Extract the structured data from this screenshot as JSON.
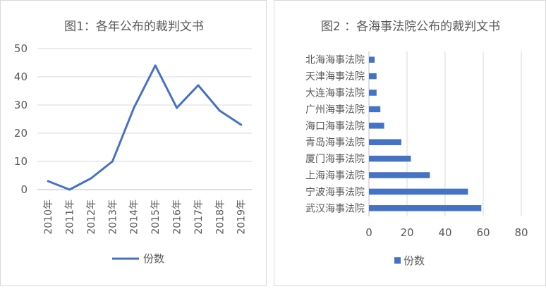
{
  "chart_data": [
    {
      "type": "line",
      "title": "图1：各年公布的裁判文书",
      "categories": [
        "2010年",
        "2011年",
        "2012年",
        "2013年",
        "2014年",
        "2015年",
        "2016年",
        "2017年",
        "2018年",
        "2019年"
      ],
      "series": [
        {
          "name": "份数",
          "values": [
            3,
            0,
            4,
            10,
            29,
            44,
            29,
            37,
            28,
            23
          ],
          "color": "#4472c4"
        }
      ],
      "ylim": [
        0,
        50
      ],
      "yticks": [
        0,
        10,
        20,
        30,
        40,
        50
      ],
      "grid": true,
      "legend": "bottom"
    },
    {
      "type": "bar",
      "orientation": "horizontal",
      "title": "图2 ：各海事法院公布的裁判文书",
      "categories": [
        "北海海事法院",
        "天津海事法院",
        "大连海事法院",
        "广州海事法院",
        "海口海事法院",
        "青岛海事法院",
        "厦门海事法院",
        "上海海事法院",
        "宁波海事法院",
        "武汉海事法院"
      ],
      "series": [
        {
          "name": "份数",
          "values": [
            3,
            4,
            4,
            6,
            8,
            17,
            22,
            32,
            52,
            59
          ],
          "color": "#4472c4"
        }
      ],
      "xlim": [
        0,
        80
      ],
      "xticks": [
        0,
        20,
        40,
        60,
        80
      ],
      "grid": true,
      "legend": "bottom"
    }
  ]
}
